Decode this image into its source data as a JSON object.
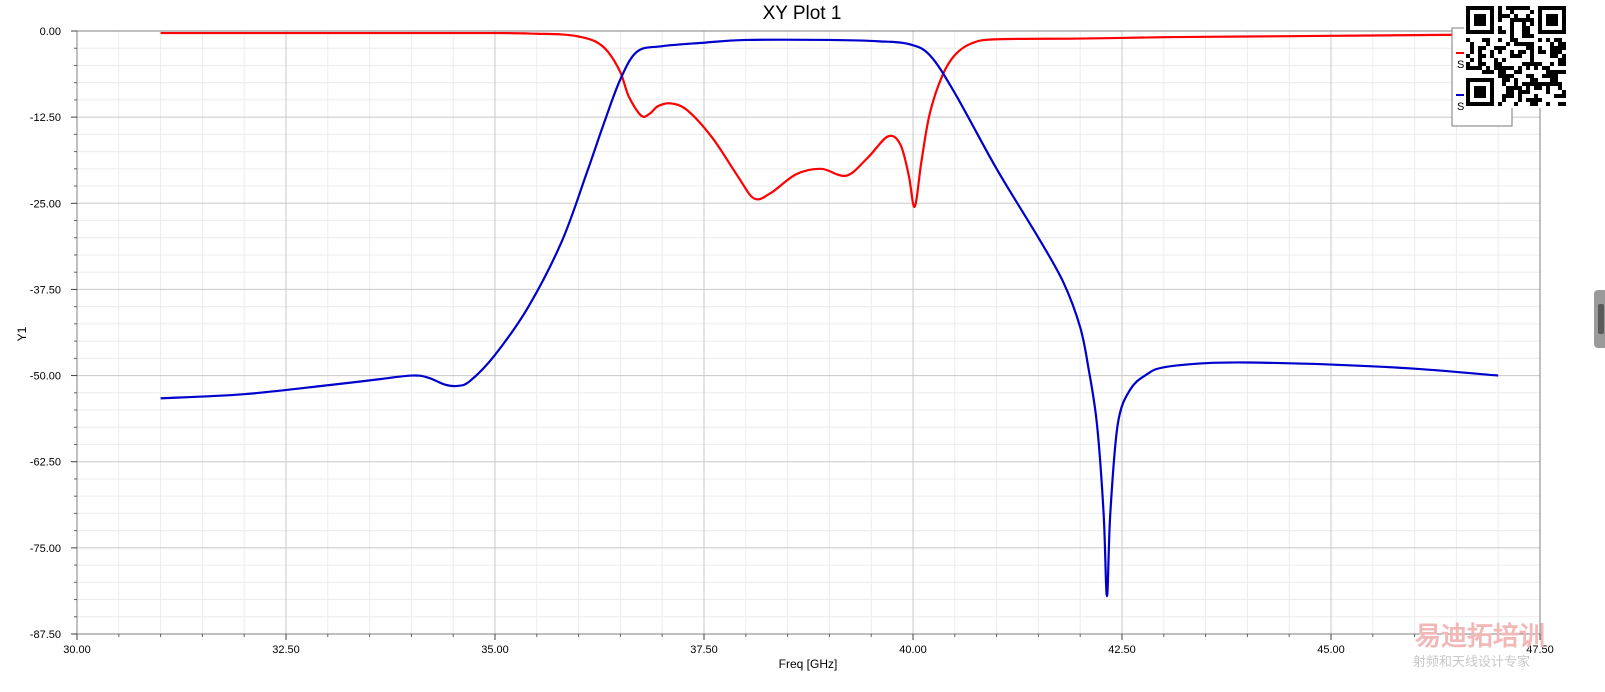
{
  "chart_data": {
    "type": "line",
    "title": "XY Plot 1",
    "xlabel": "Freq [GHz]",
    "ylabel": "Y1",
    "xlim": [
      30.0,
      47.5
    ],
    "ylim": [
      -87.5,
      0.0
    ],
    "x_ticks": [
      "30.00",
      "32.50",
      "35.00",
      "37.50",
      "40.00",
      "42.50",
      "45.00",
      "47.50"
    ],
    "y_ticks": [
      "0.00",
      "-12.50",
      "-25.00",
      "-37.50",
      "-50.00",
      "-62.50",
      "-75.00",
      "-87.50"
    ],
    "grid": true,
    "legend_position": "top-right",
    "series": [
      {
        "name": "S",
        "color": "#ff0000",
        "points": [
          [
            31.0,
            -0.3
          ],
          [
            33.0,
            -0.3
          ],
          [
            35.0,
            -0.3
          ],
          [
            35.5,
            -0.4
          ],
          [
            35.8,
            -0.5
          ],
          [
            36.0,
            -0.8
          ],
          [
            36.2,
            -1.5
          ],
          [
            36.35,
            -3
          ],
          [
            36.5,
            -6
          ],
          [
            36.6,
            -9.5
          ],
          [
            36.75,
            -12.3
          ],
          [
            36.85,
            -12.0
          ],
          [
            36.95,
            -10.9
          ],
          [
            37.1,
            -10.5
          ],
          [
            37.3,
            -11.5
          ],
          [
            37.6,
            -15.5
          ],
          [
            37.9,
            -21.0
          ],
          [
            38.1,
            -24.3
          ],
          [
            38.3,
            -23.5
          ],
          [
            38.6,
            -20.8
          ],
          [
            38.9,
            -20.0
          ],
          [
            39.2,
            -21.0
          ],
          [
            39.45,
            -18.5
          ],
          [
            39.7,
            -15.3
          ],
          [
            39.85,
            -16.5
          ],
          [
            39.95,
            -21.0
          ],
          [
            40.02,
            -25.5
          ],
          [
            40.1,
            -19.0
          ],
          [
            40.2,
            -12.0
          ],
          [
            40.35,
            -6.5
          ],
          [
            40.5,
            -3.5
          ],
          [
            40.7,
            -1.8
          ],
          [
            41.0,
            -1.2
          ],
          [
            42.0,
            -1.1
          ],
          [
            43.0,
            -0.9
          ],
          [
            44.0,
            -0.8
          ],
          [
            45.0,
            -0.7
          ],
          [
            46.0,
            -0.6
          ],
          [
            47.0,
            -0.5
          ]
        ]
      },
      {
        "name": "S",
        "color": "#0000cc",
        "points": [
          [
            31.0,
            -53.3
          ],
          [
            32.0,
            -52.7
          ],
          [
            33.0,
            -51.4
          ],
          [
            33.5,
            -50.7
          ],
          [
            34.0,
            -50.0
          ],
          [
            34.2,
            -50.3
          ],
          [
            34.4,
            -51.3
          ],
          [
            34.55,
            -51.5
          ],
          [
            34.7,
            -50.8
          ],
          [
            35.0,
            -47.0
          ],
          [
            35.4,
            -40.0
          ],
          [
            35.8,
            -30.5
          ],
          [
            36.1,
            -20.5
          ],
          [
            36.3,
            -13.5
          ],
          [
            36.5,
            -7.0
          ],
          [
            36.7,
            -3.0
          ],
          [
            37.0,
            -2.2
          ],
          [
            37.5,
            -1.7
          ],
          [
            38.0,
            -1.3
          ],
          [
            39.0,
            -1.3
          ],
          [
            39.6,
            -1.5
          ],
          [
            39.95,
            -1.9
          ],
          [
            40.2,
            -3.5
          ],
          [
            40.5,
            -9.0
          ],
          [
            41.0,
            -20.0
          ],
          [
            41.5,
            -30.0
          ],
          [
            41.8,
            -36.5
          ],
          [
            42.0,
            -43.0
          ],
          [
            42.1,
            -49.0
          ],
          [
            42.2,
            -57.0
          ],
          [
            42.28,
            -70.0
          ],
          [
            42.32,
            -82.0
          ],
          [
            42.36,
            -70.0
          ],
          [
            42.45,
            -57.0
          ],
          [
            42.6,
            -52.0
          ],
          [
            42.8,
            -49.8
          ],
          [
            43.0,
            -48.8
          ],
          [
            43.5,
            -48.2
          ],
          [
            44.0,
            -48.1
          ],
          [
            45.0,
            -48.4
          ],
          [
            46.0,
            -49.0
          ],
          [
            47.0,
            -50.0
          ]
        ]
      }
    ]
  },
  "watermark": {
    "line1": "易迪拓培训",
    "line2": "射频和天线设计专家"
  }
}
